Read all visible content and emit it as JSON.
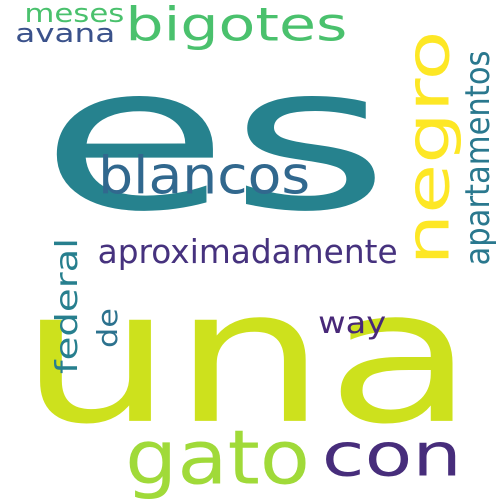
{
  "words": [
    {
      "text": "es",
      "color": "#26828e"
    },
    {
      "text": "una",
      "color": "#cde11d"
    },
    {
      "text": "gato",
      "color": "#a0da39"
    },
    {
      "text": "con",
      "color": "#472d7b"
    },
    {
      "text": "negro",
      "color": "#fde725"
    },
    {
      "text": "blancos",
      "color": "#31688e"
    },
    {
      "text": "bigotes",
      "color": "#4ac16d"
    },
    {
      "text": "aproximadamente",
      "color": "#46327e"
    },
    {
      "text": "apartamentos",
      "color": "#2a788e"
    },
    {
      "text": "federal",
      "color": "#277f8e"
    },
    {
      "text": "way",
      "color": "#482878"
    },
    {
      "text": "de",
      "color": "#2c728e"
    },
    {
      "text": "avana",
      "color": "#3b528b"
    },
    {
      "text": "meses",
      "color": "#4ac16d"
    }
  ]
}
